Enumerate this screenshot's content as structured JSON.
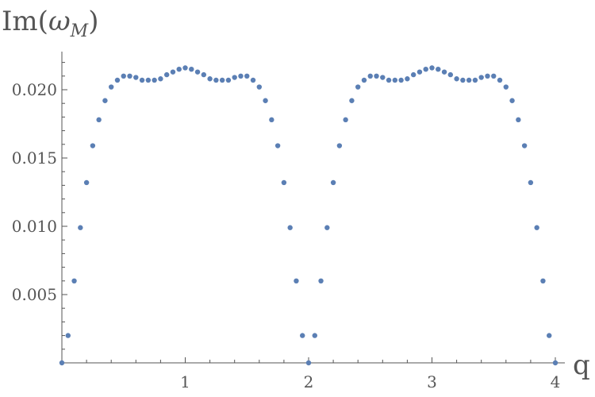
{
  "chart_data": {
    "type": "scatter",
    "title": "",
    "xlabel": "q",
    "ylabel_main": "Im(",
    "ylabel_symbol": "ω",
    "ylabel_subscript": "M",
    "ylabel_close": ")",
    "xlim": [
      0,
      4.0
    ],
    "ylim": [
      0,
      0.0228
    ],
    "grid": false,
    "colors": {
      "points": "#5b7fb4",
      "axes": "#555555"
    },
    "x_ticks": [
      {
        "value": 1,
        "label": "1"
      },
      {
        "value": 2,
        "label": "2"
      },
      {
        "value": 3,
        "label": "3"
      },
      {
        "value": 4,
        "label": "4"
      }
    ],
    "y_ticks": [
      {
        "value": 0.005,
        "label": "0.005"
      },
      {
        "value": 0.01,
        "label": "0.010"
      },
      {
        "value": 0.015,
        "label": "0.015"
      },
      {
        "value": 0.02,
        "label": "0.020"
      }
    ],
    "series": [
      {
        "points": [
          [
            0.0,
            0.0
          ],
          [
            0.05,
            0.002
          ],
          [
            0.1,
            0.006
          ],
          [
            0.15,
            0.0099
          ],
          [
            0.2,
            0.0132
          ],
          [
            0.25,
            0.0159
          ],
          [
            0.3,
            0.0178
          ],
          [
            0.35,
            0.0192
          ],
          [
            0.4,
            0.0202
          ],
          [
            0.45,
            0.0207
          ],
          [
            0.5,
            0.021
          ],
          [
            0.55,
            0.021
          ],
          [
            0.6,
            0.0209
          ],
          [
            0.65,
            0.0207
          ],
          [
            0.7,
            0.0207
          ],
          [
            0.75,
            0.0207
          ],
          [
            0.8,
            0.0208
          ],
          [
            0.85,
            0.0211
          ],
          [
            0.9,
            0.0213
          ],
          [
            0.95,
            0.0215
          ],
          [
            1.0,
            0.0216
          ],
          [
            1.05,
            0.0215
          ],
          [
            1.1,
            0.0213
          ],
          [
            1.15,
            0.0211
          ],
          [
            1.2,
            0.0208
          ],
          [
            1.25,
            0.0207
          ],
          [
            1.3,
            0.0207
          ],
          [
            1.35,
            0.0207
          ],
          [
            1.4,
            0.0209
          ],
          [
            1.45,
            0.021
          ],
          [
            1.5,
            0.021
          ],
          [
            1.55,
            0.0207
          ],
          [
            1.6,
            0.0202
          ],
          [
            1.65,
            0.0192
          ],
          [
            1.7,
            0.0178
          ],
          [
            1.75,
            0.0159
          ],
          [
            1.8,
            0.0132
          ],
          [
            1.85,
            0.0099
          ],
          [
            1.9,
            0.006
          ],
          [
            1.95,
            0.002
          ],
          [
            2.0,
            0.0
          ],
          [
            2.05,
            0.002
          ],
          [
            2.1,
            0.006
          ],
          [
            2.15,
            0.0099
          ],
          [
            2.2,
            0.0132
          ],
          [
            2.25,
            0.0159
          ],
          [
            2.3,
            0.0178
          ],
          [
            2.35,
            0.0192
          ],
          [
            2.4,
            0.0202
          ],
          [
            2.45,
            0.0207
          ],
          [
            2.5,
            0.021
          ],
          [
            2.55,
            0.021
          ],
          [
            2.6,
            0.0209
          ],
          [
            2.65,
            0.0207
          ],
          [
            2.7,
            0.0207
          ],
          [
            2.75,
            0.0207
          ],
          [
            2.8,
            0.0208
          ],
          [
            2.85,
            0.0211
          ],
          [
            2.9,
            0.0213
          ],
          [
            2.95,
            0.0215
          ],
          [
            3.0,
            0.0216
          ],
          [
            3.05,
            0.0215
          ],
          [
            3.1,
            0.0213
          ],
          [
            3.15,
            0.0211
          ],
          [
            3.2,
            0.0208
          ],
          [
            3.25,
            0.0207
          ],
          [
            3.3,
            0.0207
          ],
          [
            3.35,
            0.0207
          ],
          [
            3.4,
            0.0209
          ],
          [
            3.45,
            0.021
          ],
          [
            3.5,
            0.021
          ],
          [
            3.55,
            0.0207
          ],
          [
            3.6,
            0.0202
          ],
          [
            3.65,
            0.0192
          ],
          [
            3.7,
            0.0178
          ],
          [
            3.75,
            0.0159
          ],
          [
            3.8,
            0.0132
          ],
          [
            3.85,
            0.0099
          ],
          [
            3.9,
            0.006
          ],
          [
            3.95,
            0.002
          ],
          [
            4.0,
            0.0
          ]
        ]
      }
    ]
  }
}
